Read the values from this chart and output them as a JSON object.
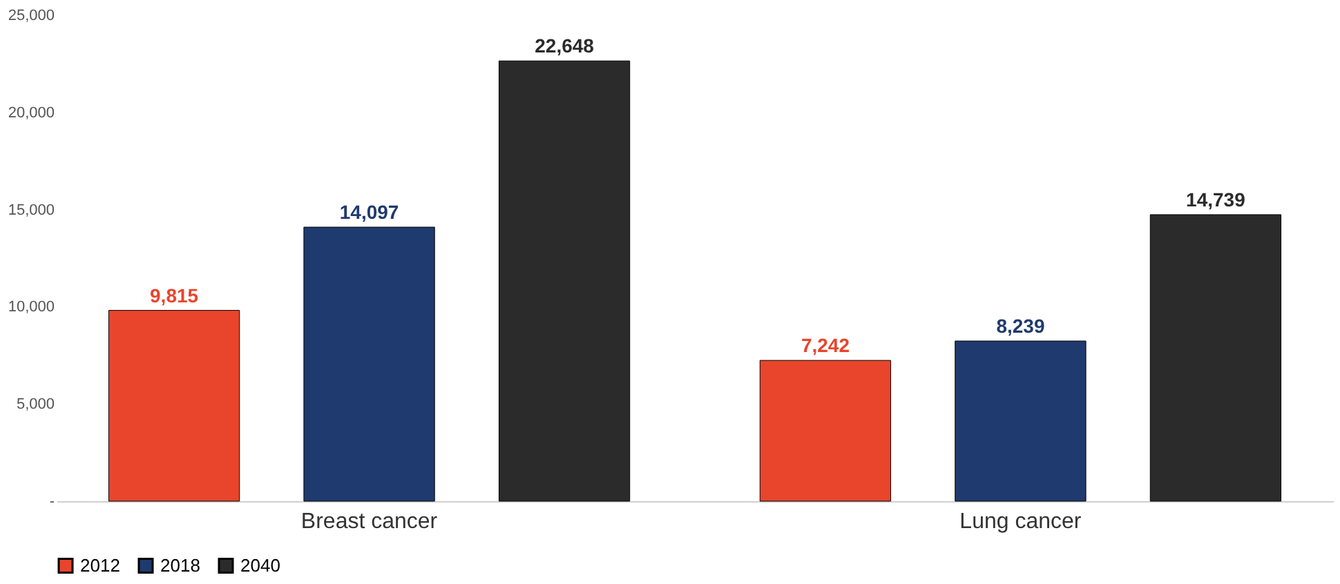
{
  "chart_data": {
    "type": "bar",
    "categories": [
      "Breast cancer",
      "Lung cancer"
    ],
    "series": [
      {
        "name": "2012",
        "color": "#e8452c",
        "values": [
          9815,
          7242
        ],
        "value_labels": [
          "9,815",
          "7,242"
        ]
      },
      {
        "name": "2018",
        "color": "#1f3a6e",
        "values": [
          14097,
          8239
        ],
        "value_labels": [
          "14,097",
          "8,239"
        ]
      },
      {
        "name": "2040",
        "color": "#2b2b2b",
        "values": [
          22648,
          14739
        ],
        "value_labels": [
          "22,648",
          "14,739"
        ]
      }
    ],
    "ylim": [
      0,
      25000
    ],
    "yticks": [
      {
        "value": 0,
        "label": "-"
      },
      {
        "value": 5000,
        "label": "5,000"
      },
      {
        "value": 10000,
        "label": "10,000"
      },
      {
        "value": 15000,
        "label": "15,000"
      },
      {
        "value": 20000,
        "label": "20,000"
      },
      {
        "value": 25000,
        "label": "25,000"
      }
    ],
    "grid": false,
    "legend": "bottom"
  }
}
